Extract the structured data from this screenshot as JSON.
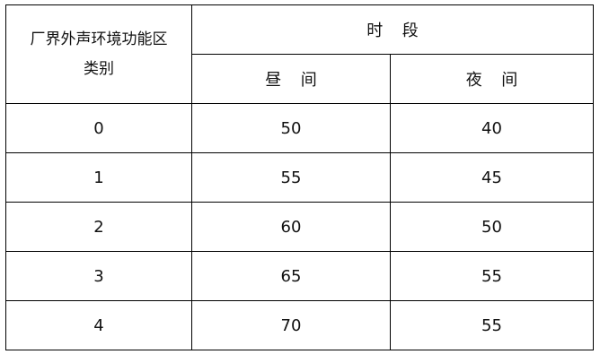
{
  "header": {
    "category_line1": "厂界外声环境功能区",
    "category_line2": "类别",
    "period": "时段",
    "day": "昼间",
    "night": "夜间"
  },
  "rows": [
    {
      "category": "0",
      "day": "50",
      "night": "40"
    },
    {
      "category": "1",
      "day": "55",
      "night": "45"
    },
    {
      "category": "2",
      "day": "60",
      "night": "50"
    },
    {
      "category": "3",
      "day": "65",
      "night": "55"
    },
    {
      "category": "4",
      "day": "70",
      "night": "55"
    }
  ]
}
